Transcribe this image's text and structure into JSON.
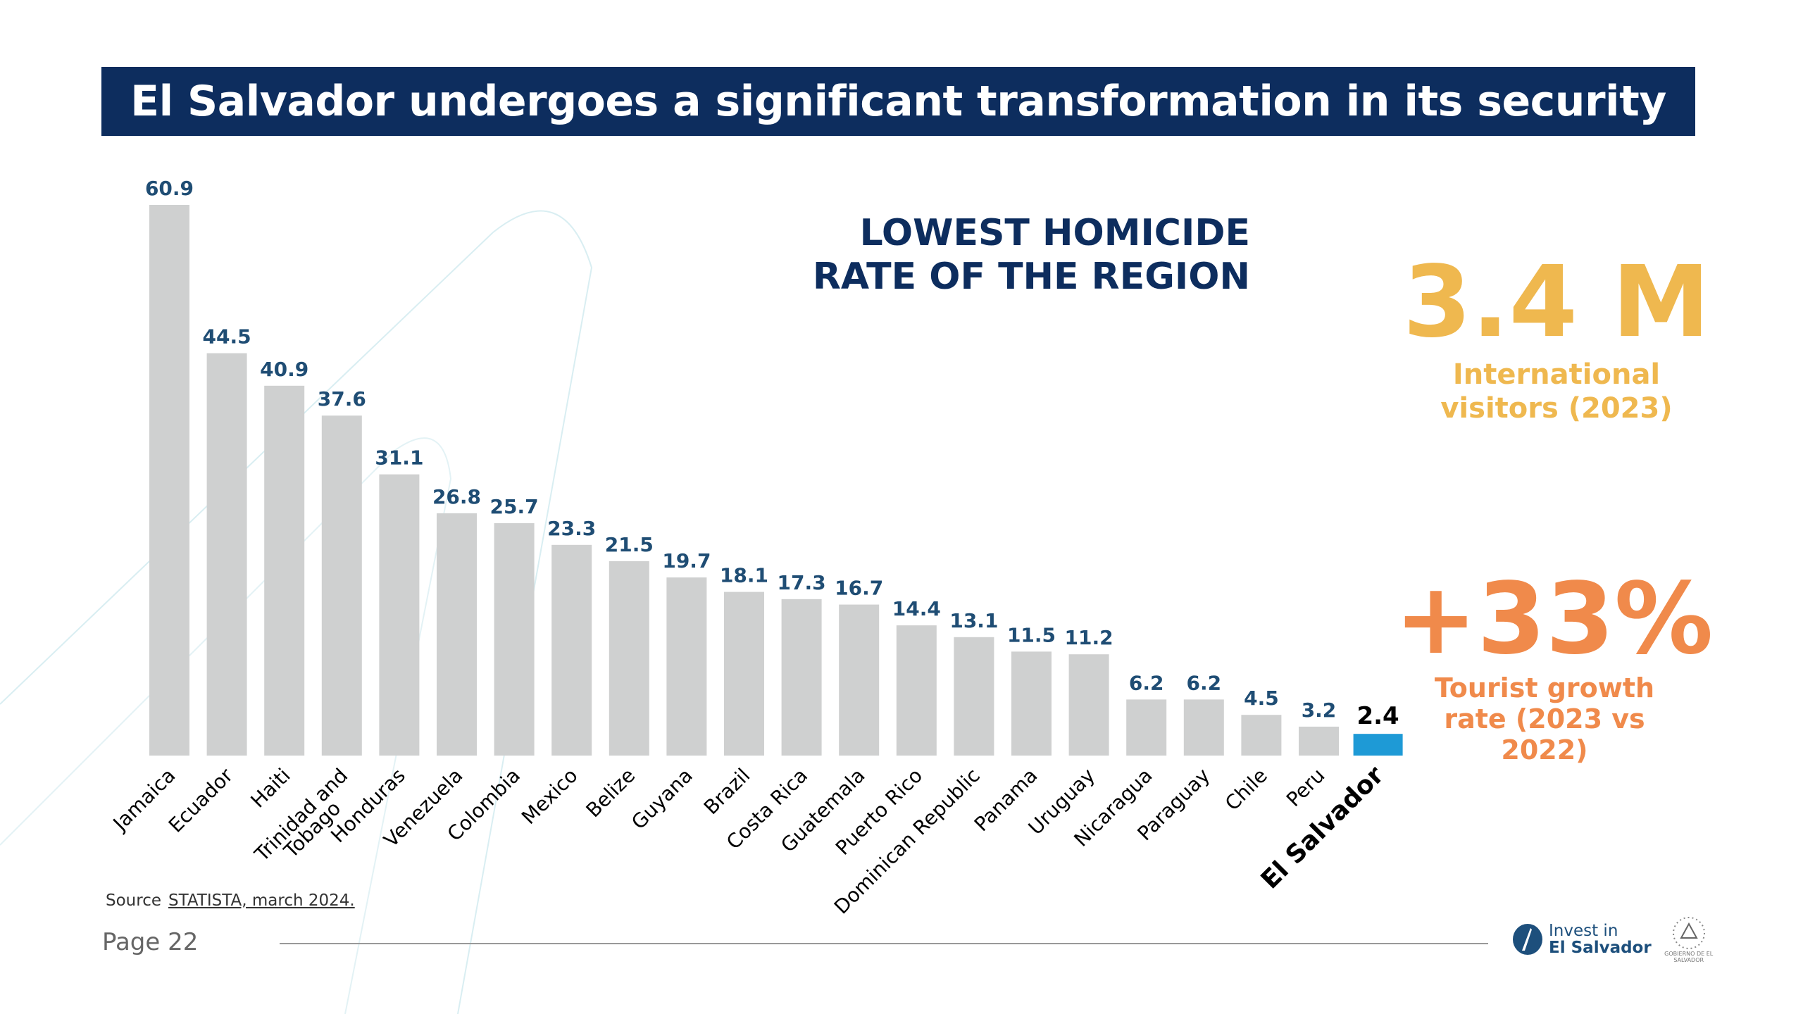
{
  "header": {
    "title": "El Salvador undergoes a significant transformation in its security"
  },
  "headline": {
    "line1": "LOWEST HOMICIDE",
    "line2": "RATE OF THE REGION"
  },
  "stats": [
    {
      "value": "3.4 M",
      "caption_line1": "International",
      "caption_line2": "visitors (2023)",
      "color": "#efb84f"
    },
    {
      "value": "+33%",
      "caption_line1": "Tourist growth",
      "caption_line2": "rate (2023 vs",
      "caption_line3": "2022)",
      "color": "#f08a4b"
    }
  ],
  "footer": {
    "source_label": "Source",
    "source_link": "STATISTA, march 2024.",
    "page": "Page 22",
    "logo_line1": "Invest in",
    "logo_line2": "El Salvador",
    "seal_text": "GOBIERNO DE EL SALVADOR"
  },
  "chart_data": {
    "type": "bar",
    "title": "",
    "xlabel": "",
    "ylabel": "",
    "ylim": [
      0,
      60.9
    ],
    "grid": false,
    "categories": [
      "Jamaica",
      "Ecuador",
      "Haiti",
      "Trinidad and Tobago",
      "Honduras",
      "Venezuela",
      "Colombia",
      "Mexico",
      "Belize",
      "Guyana",
      "Brazil",
      "Costa Rica",
      "Guatemala",
      "Puerto Rico",
      "Dominican Republic",
      "Panama",
      "Uruguay",
      "Nicaragua",
      "Paraguay",
      "Chile",
      "Peru",
      "El Salvador"
    ],
    "values": [
      60.9,
      44.5,
      40.9,
      37.6,
      31.1,
      26.8,
      25.7,
      23.3,
      21.5,
      19.7,
      18.1,
      17.3,
      16.7,
      14.4,
      13.1,
      11.5,
      11.2,
      6.2,
      6.2,
      4.5,
      3.2,
      2.4
    ],
    "highlight": "El Salvador",
    "colors": {
      "bar": "#cfd0d0",
      "highlight": "#1e9ad6",
      "value_label": "#1f4d74",
      "highlight_label": "#000000"
    }
  }
}
